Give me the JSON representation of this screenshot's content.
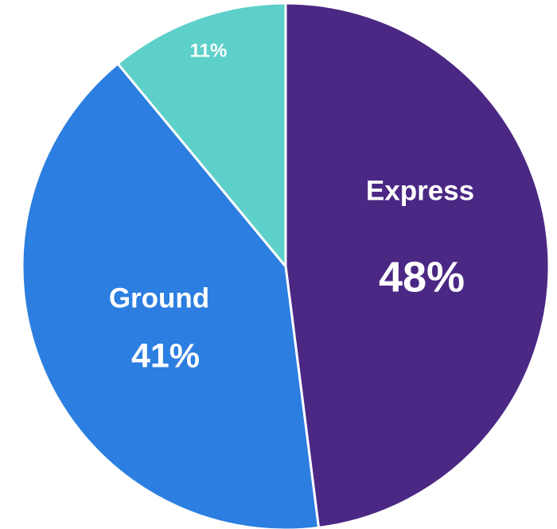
{
  "chart_data": {
    "type": "pie",
    "title": "",
    "slices": [
      {
        "name": "Express",
        "value": 48,
        "value_label": "48%",
        "color": "#4b2884"
      },
      {
        "name": "Ground",
        "value": 41,
        "value_label": "41%",
        "color": "#2c7ee0"
      },
      {
        "name": "",
        "value": 11,
        "value_label": "11%",
        "color": "#5dd0ca"
      }
    ],
    "start_angle": "12 o'clock",
    "direction": "clockwise",
    "legend": "none",
    "labels_inside_slices": true
  }
}
